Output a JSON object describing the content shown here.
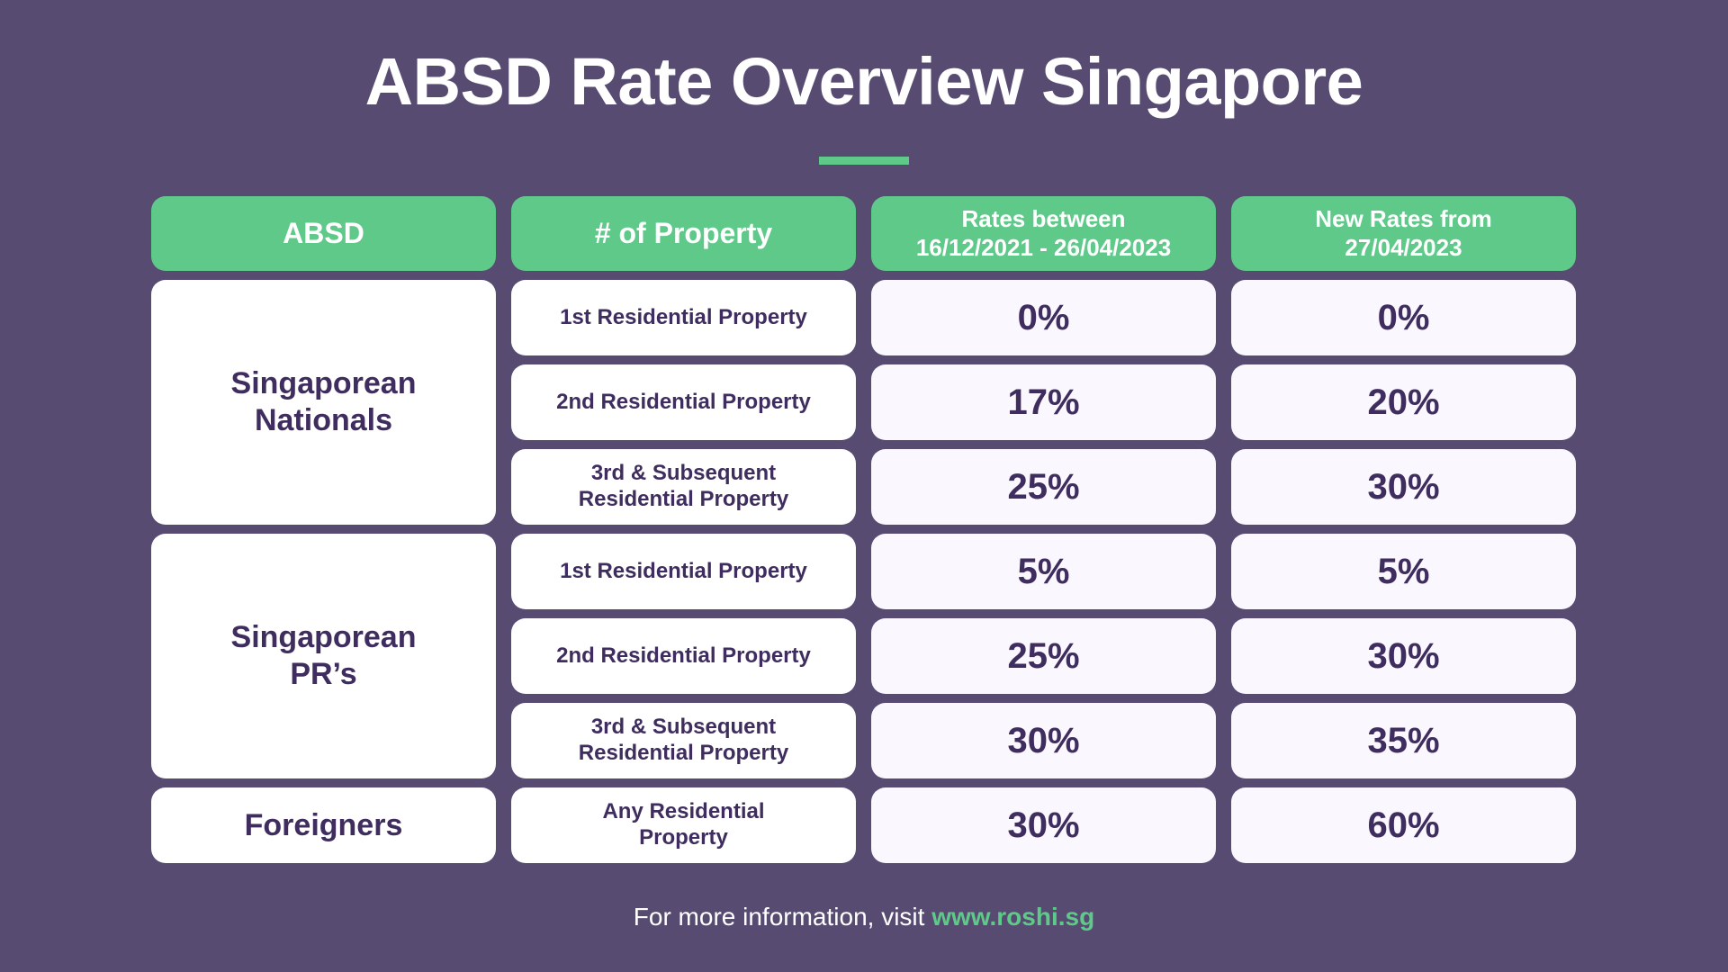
{
  "title": "ABSD Rate Overview Singapore",
  "colors": {
    "background": "#574b72",
    "accent": "#5fc98a",
    "text": "#3e2d5e"
  },
  "headers": [
    "ABSD",
    "# of Property",
    "Rates between 16/12/2021 - 26/04/2023",
    "New Rates from 27/04/2023"
  ],
  "groups": [
    {
      "category": "Singaporean Nationals",
      "rows": [
        {
          "property": "1st Residential Property",
          "old": "0%",
          "new": "0%"
        },
        {
          "property": "2nd Residential Property",
          "old": "17%",
          "new": "20%"
        },
        {
          "property": "3rd & Subsequent Residential Property",
          "old": "25%",
          "new": "30%"
        }
      ]
    },
    {
      "category": "Singaporean PR’s",
      "rows": [
        {
          "property": "1st Residential Property",
          "old": "5%",
          "new": "5%"
        },
        {
          "property": "2nd Residential Property",
          "old": "25%",
          "new": "30%"
        },
        {
          "property": "3rd & Subsequent Residential Property",
          "old": "30%",
          "new": "35%"
        }
      ]
    },
    {
      "category": "Foreigners",
      "rows": [
        {
          "property": "Any Residential Property",
          "old": "30%",
          "new": "60%"
        }
      ]
    }
  ],
  "footer": {
    "text": "For more information, visit ",
    "link": "www.roshi.sg"
  }
}
